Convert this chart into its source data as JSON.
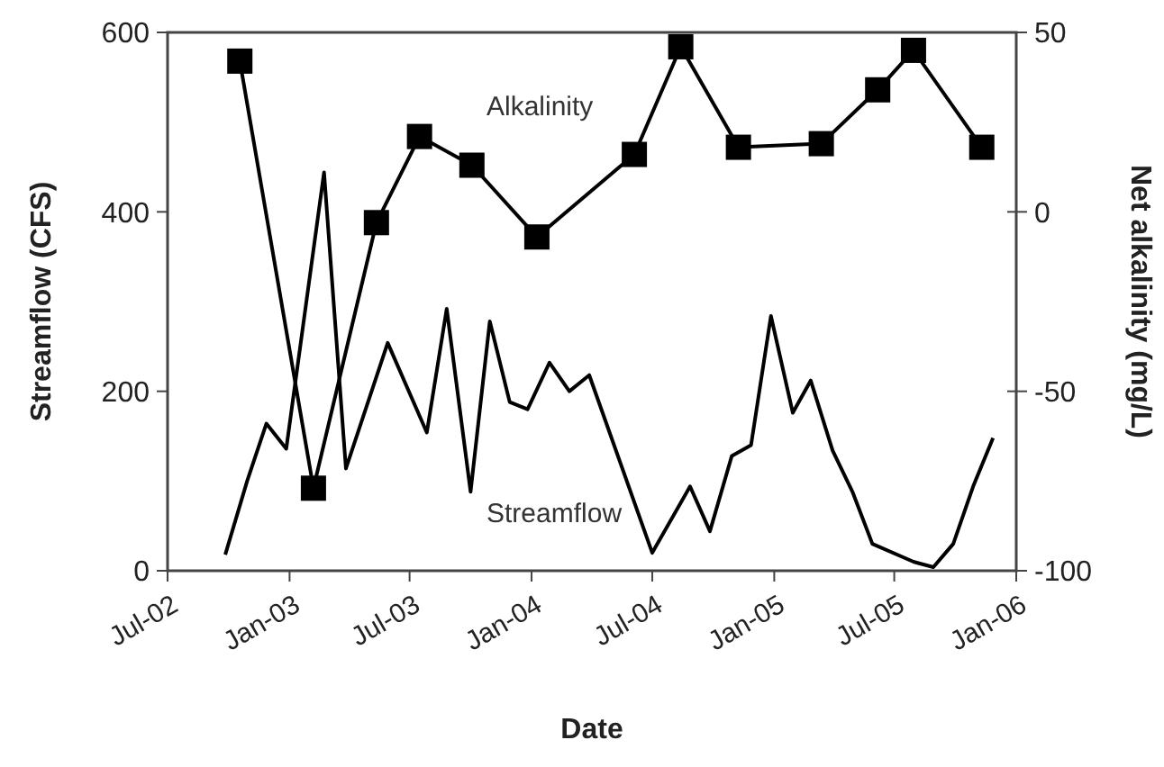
{
  "chart_data": {
    "type": "line",
    "xlabel": "Date",
    "ylabel": "Streamflow (CFS)",
    "y2label": "Net alkalinity (mg/L)",
    "xlim": [
      "2002-07-01",
      "2006-01-01"
    ],
    "xticks": [
      {
        "value": "2002-07-01",
        "label": "Jul-02"
      },
      {
        "value": "2003-01-01",
        "label": "Jan-03"
      },
      {
        "value": "2003-07-01",
        "label": "Jul-03"
      },
      {
        "value": "2004-01-01",
        "label": "Jan-04"
      },
      {
        "value": "2004-07-01",
        "label": "Jul-04"
      },
      {
        "value": "2005-01-01",
        "label": "Jan-05"
      },
      {
        "value": "2005-07-01",
        "label": "Jul-05"
      },
      {
        "value": "2006-01-01",
        "label": "Jan-06"
      }
    ],
    "ylim": [
      0,
      600
    ],
    "yticks": [
      0,
      200,
      400,
      600
    ],
    "y2lim": [
      -100,
      50
    ],
    "y2ticks": [
      -100,
      -50,
      0,
      50
    ],
    "grid": false,
    "line_style": "solid",
    "series": [
      {
        "name": "Alkalinity",
        "color": "#000000",
        "axis": "y2",
        "marker": "square",
        "x": [
          "2002-10-18",
          "2003-02-06",
          "2003-05-12",
          "2003-07-16",
          "2003-10-03",
          "2004-01-09",
          "2004-06-04",
          "2004-08-13",
          "2004-11-08",
          "2005-03-13",
          "2005-06-06",
          "2005-07-30",
          "2005-11-10"
        ],
        "values": [
          42,
          -77,
          -3,
          21,
          13,
          -7,
          16,
          46,
          18,
          19,
          34,
          45,
          18
        ]
      },
      {
        "name": "Streamflow",
        "color": "#000000",
        "marker": "none",
        "x": [
          "2002-09-26",
          "2002-10-29",
          "2002-11-27",
          "2002-12-27",
          "2003-02-22",
          "2003-03-27",
          "2003-05-29",
          "2003-07-27",
          "2003-08-26",
          "2003-10-01",
          "2003-10-30",
          "2003-11-29",
          "2003-12-26",
          "2004-01-28",
          "2004-02-27",
          "2004-03-28",
          "2004-07-01",
          "2004-08-27",
          "2004-09-26",
          "2004-10-29",
          "2004-11-27",
          "2004-12-27",
          "2005-01-29",
          "2005-02-25",
          "2005-03-30",
          "2005-04-29",
          "2005-05-29",
          "2005-07-30",
          "2005-08-29",
          "2005-09-28",
          "2005-10-28",
          "2005-11-27"
        ],
        "values": [
          18,
          100,
          164,
          136,
          444,
          114,
          254,
          154,
          292,
          88,
          278,
          188,
          180,
          232,
          200,
          218,
          20,
          94,
          44,
          128,
          140,
          284,
          176,
          212,
          134,
          88,
          30,
          10,
          4,
          30,
          94,
          148
        ]
      }
    ]
  }
}
